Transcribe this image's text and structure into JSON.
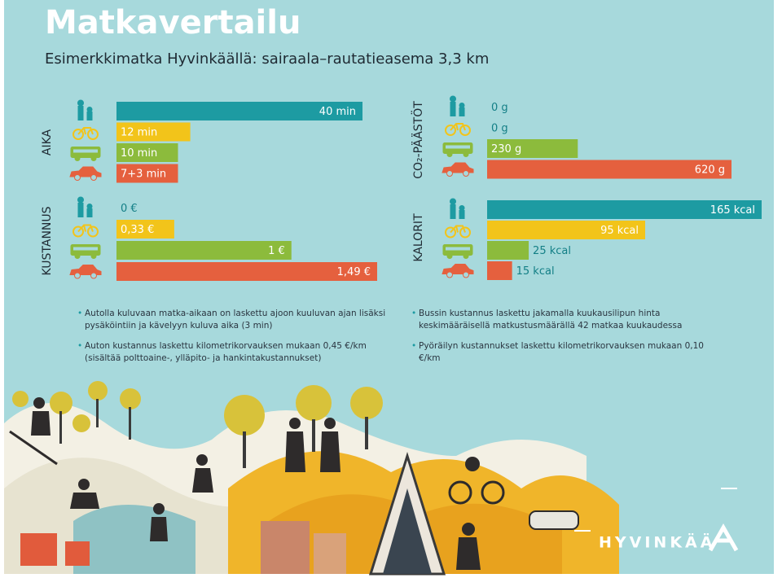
{
  "header": {
    "title": "Matkavertailu",
    "subtitle": "Esimerkkimatka Hyvinkäällä: sairaala–rautatieasema 3,3 km"
  },
  "chart_data": [
    {
      "type": "bar",
      "orientation": "horizontal",
      "axis_label": "AIKA",
      "values": [
        40,
        12,
        10,
        10
      ],
      "value_labels": [
        "40 min",
        "12 min",
        "10 min",
        "7+3 min"
      ],
      "colors": [
        "#1d9ba2",
        "#f2c41a",
        "#8cbb3c",
        "#e5603e"
      ]
    },
    {
      "type": "bar",
      "orientation": "horizontal",
      "axis_label": "KUSTANNUS",
      "values": [
        0,
        0.33,
        1,
        1.49
      ],
      "value_labels": [
        "0 €",
        "0,33 €",
        "1 €",
        "1,49 €"
      ],
      "colors": [
        "#1d9ba2",
        "#f2c41a",
        "#8cbb3c",
        "#e5603e"
      ]
    },
    {
      "type": "bar",
      "orientation": "horizontal",
      "axis_label": "CO₂-PÄÄSTÖT",
      "values": [
        0,
        0,
        230,
        620
      ],
      "value_labels": [
        "0 g",
        "0 g",
        "230 g",
        "620 g"
      ],
      "colors": [
        "#1d9ba2",
        "#f2c41a",
        "#8cbb3c",
        "#e5603e"
      ]
    },
    {
      "type": "bar",
      "orientation": "horizontal",
      "axis_label": "KALORIT",
      "values": [
        165,
        95,
        25,
        15
      ],
      "value_labels": [
        "165 kcal",
        "95 kcal",
        "25 kcal",
        "15 kcal"
      ],
      "colors": [
        "#1d9ba2",
        "#f2c41a",
        "#8cbb3c",
        "#e5603e"
      ]
    }
  ],
  "notes": [
    "Autolla kuluvaan matka-aikaan on laskettu ajoon kuuluvan ajan lisäksi pysäköintiin ja kävelyyn kuluva aika (3 min)",
    "Auton kustannus laskettu kilometrikorvauksen mukaan 0,45 €/km (sisältää polttoaine-, ylläpito- ja hankintakustannukset)",
    "Bussin kustannus laskettu jakamalla kuukausilipun hinta keskimääräisellä matkustusmäärällä 42 matkaa kuukaudessa",
    "Pyöräilyn kustannukset laskettu kilometrikorvauksen mukaan 0,10 €/km"
  ],
  "logo": "HYVINKÄÄ"
}
